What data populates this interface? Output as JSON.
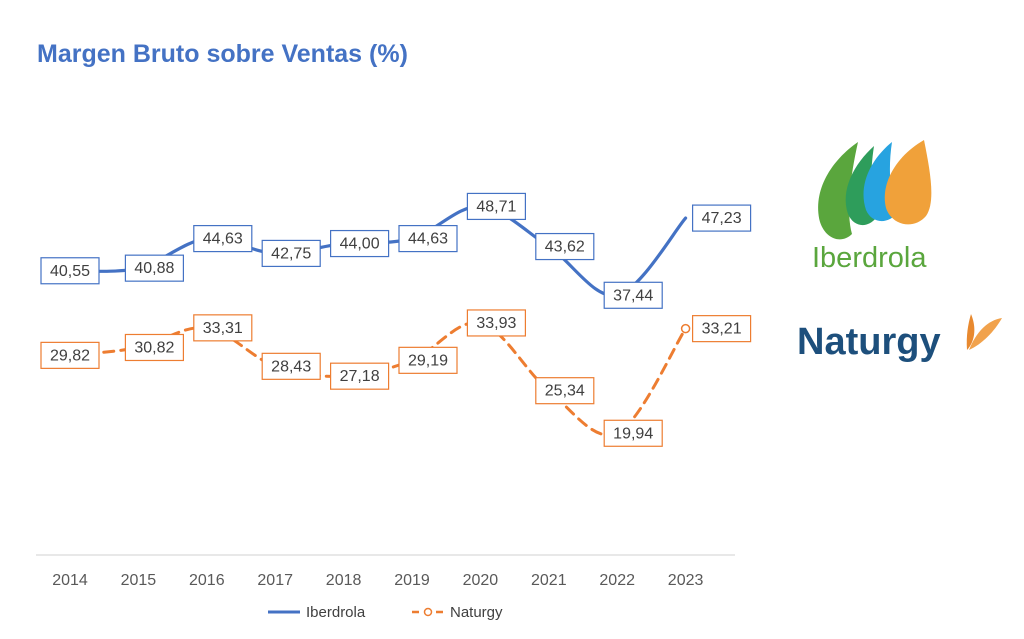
{
  "chart_data": {
    "type": "line",
    "title": "Margen Bruto sobre Ventas (%)",
    "xlabel": "",
    "ylabel": "",
    "categories": [
      "2014",
      "2015",
      "2016",
      "2017",
      "2018",
      "2019",
      "2020",
      "2021",
      "2022",
      "2023"
    ],
    "ylim": [
      15,
      55
    ],
    "grid": false,
    "legend_position": "bottom",
    "series": [
      {
        "name": "Iberdrola",
        "values": [
          40.55,
          40.88,
          44.63,
          42.75,
          44.0,
          44.63,
          48.71,
          43.62,
          37.44,
          47.23
        ],
        "labels": [
          "40,55",
          "40,88",
          "44,63",
          "42,75",
          "44,00",
          "44,63",
          "48,71",
          "43,62",
          "37,44",
          "47,23"
        ],
        "color": "#4472c4",
        "line_style": "solid",
        "marker": "none"
      },
      {
        "name": "Naturgy",
        "values": [
          29.82,
          30.82,
          33.31,
          28.43,
          27.18,
          29.19,
          33.93,
          25.34,
          19.94,
          33.21
        ],
        "labels": [
          "29,82",
          "30,82",
          "33,31",
          "28,43",
          "27,18",
          "29,19",
          "33,93",
          "25,34",
          "19,94",
          "33,21"
        ],
        "color": "#ed7d31",
        "line_style": "dashed",
        "marker": "circle"
      }
    ]
  },
  "logos": {
    "iberdrola": {
      "text": "Iberdrola",
      "colors": {
        "green": "#5aa63d",
        "blue": "#27a3e0",
        "orange": "#f0a13a"
      }
    },
    "naturgy": {
      "text": "Naturgy",
      "colors": {
        "navy": "#1d4f7c",
        "orange": "#e8892f"
      }
    }
  }
}
